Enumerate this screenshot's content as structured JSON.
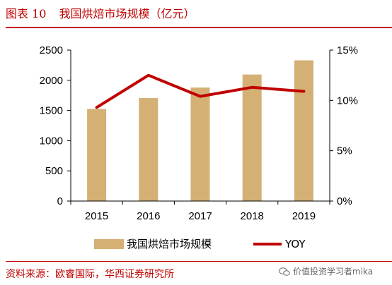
{
  "header": {
    "figure_label": "图表 10",
    "title": "我国烘焙市场规模（亿元）"
  },
  "footer": {
    "source": "资料来源：欧睿国际，华西证券研究所",
    "watermark": "价值投资学习者mika"
  },
  "colors": {
    "bar": "#D4B074",
    "line": "#C00000",
    "accent": "#C00000"
  },
  "chart_data": {
    "type": "bar",
    "categories": [
      "2015",
      "2016",
      "2017",
      "2018",
      "2019"
    ],
    "series": [
      {
        "name": "我国烘焙市场规模",
        "type": "bar",
        "axis": "left",
        "values": [
          1525,
          1705,
          1880,
          2095,
          2330
        ]
      },
      {
        "name": "YOY",
        "type": "line",
        "axis": "right",
        "values": [
          9.3,
          12.5,
          10.4,
          11.3,
          10.9
        ]
      }
    ],
    "y_left": {
      "min": 0,
      "max": 2500,
      "ticks": [
        "0",
        "500",
        "1000",
        "1500",
        "2000",
        "2500"
      ]
    },
    "y_right": {
      "min": 0,
      "max": 15,
      "ticks": [
        "0%",
        "5%",
        "10%",
        "15%"
      ]
    },
    "grid": false,
    "legend_position": "bottom"
  }
}
